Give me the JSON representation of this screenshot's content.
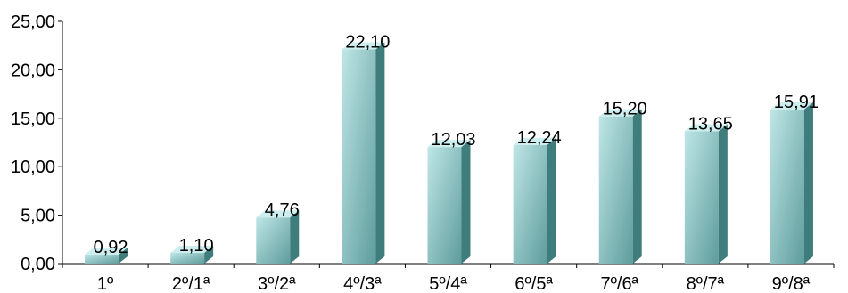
{
  "chart_data": {
    "type": "bar",
    "categories": [
      "1º",
      "2º/1ª",
      "3º/2ª",
      "4º/3ª",
      "5º/4ª",
      "6º/5ª",
      "7º/6ª",
      "8º/7ª",
      "9º/8ª"
    ],
    "values": [
      0.92,
      1.1,
      4.76,
      22.1,
      12.03,
      12.24,
      15.2,
      13.65,
      15.91
    ],
    "value_labels": [
      "0,92",
      "1,10",
      "4,76",
      "22,10",
      "12,03",
      "12,24",
      "15,20",
      "13,65",
      "15,91"
    ],
    "y_ticks": [
      "0,00",
      "5,00",
      "10,00",
      "15,00",
      "20,00",
      "25,00"
    ],
    "ylim": [
      0,
      25
    ],
    "grid": false,
    "legend": "none",
    "bar_style": "3d",
    "colors": {
      "front_light": "#bfe6e6",
      "front_dark": "#5e9c9c",
      "top": "#cdeeee",
      "side": "#3f7c7c",
      "axis": "#000000"
    }
  }
}
